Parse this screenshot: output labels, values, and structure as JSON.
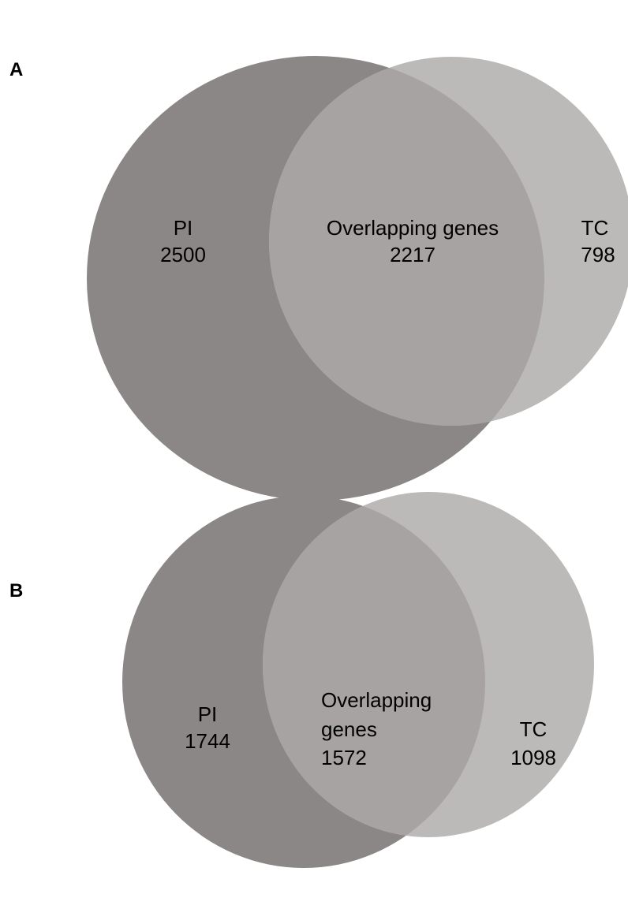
{
  "colors": {
    "pi_circle": "#8b8786",
    "tc_circle": "#bbbab9",
    "overlap": "#a7a3a2",
    "background": "#ffffff",
    "text": "#000000"
  },
  "panels": [
    {
      "letter": "A",
      "pi": {
        "label": "PI",
        "count": "2500"
      },
      "overlap": {
        "label": "Overlapping genes",
        "count": "2217"
      },
      "tc": {
        "label": "TC",
        "count": "798"
      }
    },
    {
      "letter": "B",
      "pi": {
        "label": "PI",
        "count": "1744"
      },
      "overlap": {
        "label_line1": "Overlapping",
        "label_line2": "genes",
        "count": "1572"
      },
      "tc": {
        "label": "TC",
        "count": "1098"
      }
    }
  ]
}
